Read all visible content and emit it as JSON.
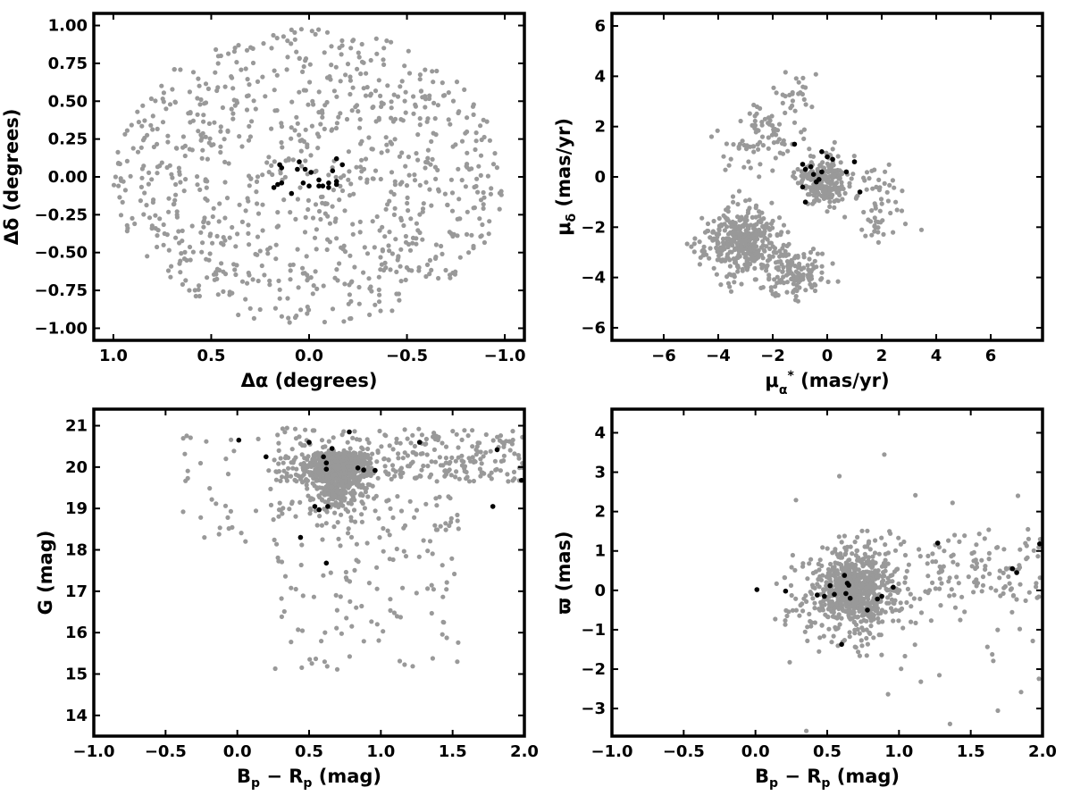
{
  "colors": {
    "field": "#999999",
    "members": "#000000",
    "frame": "#000000"
  },
  "chart_data": [
    {
      "type": "scatter",
      "id": "position",
      "xlabel": "Δα (degrees)",
      "ylabel": "Δδ (degrees)",
      "xlim": [
        1.1,
        -1.1
      ],
      "ylim": [
        -1.08,
        1.08
      ],
      "xticks": [
        1.0,
        0.5,
        0.0,
        -0.5,
        -1.0
      ],
      "xtick_labels": [
        "1.0",
        "0.5",
        "0.0",
        "−0.5",
        "−1.0"
      ],
      "yticks": [
        1.0,
        0.75,
        0.5,
        0.25,
        0.0,
        -0.25,
        -0.5,
        -0.75,
        -1.0
      ],
      "ytick_labels": [
        "1.00",
        "0.75",
        "0.50",
        "0.25",
        "0.00",
        "−0.25",
        "−0.50",
        "−0.75",
        "−1.00"
      ],
      "grid": false,
      "series": [
        {
          "style": "field",
          "generator": {
            "kind": "disk",
            "n": 900,
            "cx": 0,
            "cy": 0,
            "rx": 1.0,
            "ry": 0.98,
            "seed": 11
          }
        },
        {
          "style": "members",
          "points": [
            [
              0.15,
              0.08
            ],
            [
              0.14,
              0.06
            ],
            [
              0.16,
              -0.05
            ],
            [
              0.14,
              -0.04
            ],
            [
              0.18,
              -0.07
            ],
            [
              0.09,
              -0.11
            ],
            [
              0.06,
              0.05
            ],
            [
              0.05,
              0.1
            ],
            [
              0.02,
              0.05
            ],
            [
              -0.01,
              0.03
            ],
            [
              0.03,
              -0.04
            ],
            [
              0.0,
              -0.06
            ],
            [
              -0.05,
              -0.02
            ],
            [
              -0.07,
              -0.06
            ],
            [
              -0.1,
              -0.07
            ],
            [
              -0.1,
              -0.04
            ],
            [
              -0.05,
              -0.06
            ],
            [
              -0.12,
              0.04
            ],
            [
              -0.14,
              0.12
            ],
            [
              -0.17,
              0.08
            ],
            [
              -0.14,
              -0.05
            ],
            [
              -0.14,
              -0.03
            ]
          ]
        }
      ]
    },
    {
      "type": "scatter",
      "id": "proper-motion",
      "xlabel": "μα* (mas/yr)",
      "ylabel": "μδ (mas/yr)",
      "xlim": [
        -7.9,
        7.9
      ],
      "ylim": [
        -6.5,
        6.5
      ],
      "xticks": [
        -6,
        -4,
        -2,
        0,
        2,
        4,
        6
      ],
      "xtick_labels": [
        "−6",
        "−4",
        "−2",
        "0",
        "2",
        "4",
        "6"
      ],
      "yticks": [
        6,
        4,
        2,
        0,
        -2,
        -4,
        -6
      ],
      "ytick_labels": [
        "6",
        "4",
        "2",
        "0",
        "−2",
        "−4",
        "−6"
      ],
      "grid": false,
      "series": [
        {
          "style": "field",
          "generator": {
            "kind": "blobs",
            "seed": 23,
            "blobs": [
              [
                -3.2,
                -2.6,
                1.2,
                1.2,
                380
              ],
              [
                -0.2,
                -0.2,
                0.8,
                0.9,
                240
              ],
              [
                -1.2,
                -3.8,
                1.0,
                0.9,
                140
              ],
              [
                -2.5,
                1.5,
                1.2,
                1.3,
                80
              ],
              [
                1.8,
                -1.0,
                1.0,
                1.5,
                60
              ],
              [
                -1.0,
                3.2,
                0.8,
                0.9,
                25
              ]
            ]
          }
        },
        {
          "style": "members",
          "points": [
            [
              -1.2,
              1.3
            ],
            [
              -0.9,
              0.5
            ],
            [
              -0.8,
              0.3
            ],
            [
              -0.6,
              0.4
            ],
            [
              -0.5,
              0.1
            ],
            [
              -0.3,
              -0.1
            ],
            [
              -0.4,
              -0.2
            ],
            [
              -0.9,
              -0.4
            ],
            [
              -0.8,
              -1.0
            ],
            [
              -0.2,
              0.2
            ],
            [
              0.0,
              0.8
            ],
            [
              0.2,
              0.7
            ],
            [
              -0.2,
              1.0
            ],
            [
              0.7,
              0.2
            ],
            [
              1.0,
              0.6
            ],
            [
              1.2,
              -0.6
            ]
          ]
        }
      ]
    },
    {
      "type": "scatter",
      "id": "cmd",
      "xlabel": "Bp − Rp (mag)",
      "ylabel": "G (mag)",
      "xlim": [
        -1.0,
        2.0
      ],
      "ylim": [
        13.5,
        21.4
      ],
      "xticks": [
        -1.0,
        -0.5,
        0.0,
        0.5,
        1.0,
        1.5,
        2.0
      ],
      "xtick_labels": [
        "−1.0",
        "−0.5",
        "0.0",
        "0.5",
        "1.0",
        "1.5",
        "2.0"
      ],
      "yticks": [
        21,
        20,
        19,
        18,
        17,
        16,
        15,
        14
      ],
      "ytick_labels": [
        "21",
        "20",
        "19",
        "18",
        "17",
        "16",
        "15",
        "14"
      ],
      "grid": false,
      "series": [
        {
          "style": "field",
          "generator": {
            "kind": "cmd",
            "seed": 37
          }
        },
        {
          "style": "members",
          "points": [
            [
              0.01,
              20.65
            ],
            [
              0.2,
              20.25
            ],
            [
              0.5,
              20.6
            ],
            [
              0.6,
              20.25
            ],
            [
              0.62,
              20.1
            ],
            [
              0.62,
              19.95
            ],
            [
              0.66,
              20.45
            ],
            [
              0.78,
              20.85
            ],
            [
              0.84,
              19.98
            ],
            [
              0.88,
              19.93
            ],
            [
              0.96,
              19.92
            ],
            [
              1.27,
              20.6
            ],
            [
              1.81,
              20.42
            ],
            [
              1.98,
              19.68
            ],
            [
              1.78,
              19.05
            ],
            [
              0.54,
              19.05
            ],
            [
              0.57,
              18.97
            ],
            [
              0.63,
              19.05
            ],
            [
              0.44,
              18.3
            ],
            [
              0.62,
              17.68
            ]
          ]
        }
      ]
    },
    {
      "type": "scatter",
      "id": "parallax",
      "xlabel": "Bp − Rp (mag)",
      "ylabel": "ϖ (mas)",
      "xlim": [
        -1.0,
        2.0
      ],
      "ylim": [
        -3.7,
        4.6
      ],
      "xticks": [
        -1.0,
        -0.5,
        0.0,
        0.5,
        1.0,
        1.5,
        2.0
      ],
      "xtick_labels": [
        "−1.0",
        "−0.5",
        "0.0",
        "0.5",
        "1.0",
        "1.5",
        "2.0"
      ],
      "yticks": [
        4,
        3,
        2,
        1,
        0,
        -1,
        -2,
        -3
      ],
      "ytick_labels": [
        "4",
        "3",
        "2",
        "1",
        "0",
        "−1",
        "−2",
        "−3"
      ],
      "grid": false,
      "series": [
        {
          "style": "field",
          "generator": {
            "kind": "plx",
            "seed": 53
          }
        },
        {
          "style": "members",
          "points": [
            [
              0.01,
              0.02
            ],
            [
              0.21,
              -0.02
            ],
            [
              0.43,
              -0.12
            ],
            [
              0.48,
              -0.15
            ],
            [
              0.52,
              0.12
            ],
            [
              0.55,
              -0.1
            ],
            [
              0.6,
              -1.37
            ],
            [
              0.62,
              0.38
            ],
            [
              0.63,
              -0.08
            ],
            [
              0.64,
              0.18
            ],
            [
              0.65,
              0.13
            ],
            [
              0.66,
              -0.2
            ],
            [
              0.78,
              -0.5
            ],
            [
              0.85,
              -0.22
            ],
            [
              0.88,
              -0.15
            ],
            [
              0.96,
              0.08
            ],
            [
              1.27,
              1.2
            ],
            [
              1.79,
              0.55
            ],
            [
              1.82,
              0.45
            ],
            [
              1.98,
              1.18
            ]
          ]
        }
      ]
    }
  ]
}
